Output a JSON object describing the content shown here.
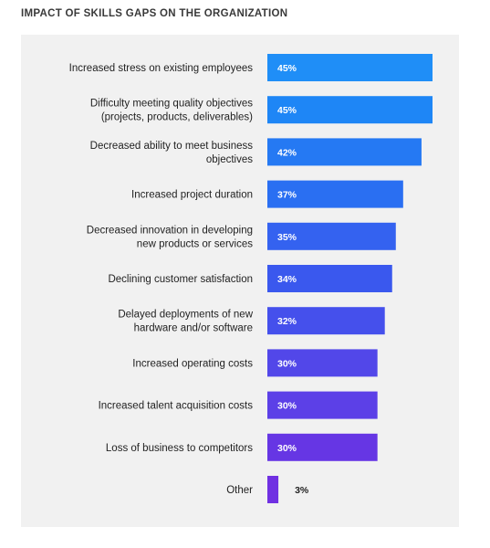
{
  "title": "IMPACT OF SKILLS GAPS ON THE ORGANIZATION",
  "chart_data": {
    "type": "bar",
    "orientation": "horizontal",
    "title": "IMPACT OF SKILLS GAPS ON THE ORGANIZATION",
    "xlabel": "",
    "ylabel": "",
    "xlim": [
      0,
      45
    ],
    "grid": false,
    "categories": [
      [
        "Increased stress on existing employees"
      ],
      [
        "Difficulty meeting quality objectives",
        "(projects, products, deliverables)"
      ],
      [
        "Decreased ability to meet business",
        "objectives"
      ],
      [
        "Increased project duration"
      ],
      [
        "Decreased innovation in developing",
        "new products or services"
      ],
      [
        "Declining customer satisfaction"
      ],
      [
        "Delayed deployments of new",
        "hardware and/or software"
      ],
      [
        "Increased operating costs"
      ],
      [
        "Increased talent acquisition costs"
      ],
      [
        "Loss of business to competitors"
      ],
      [
        "Other"
      ]
    ],
    "values": [
      45,
      45,
      42,
      37,
      35,
      34,
      32,
      30,
      30,
      30,
      3
    ],
    "value_labels": [
      "45%",
      "45%",
      "42%",
      "37%",
      "35%",
      "34%",
      "32%",
      "30%",
      "30%",
      "30%",
      "3%"
    ],
    "colors": [
      "#1f8ef7",
      "#1e86f6",
      "#2579f3",
      "#2a6ff2",
      "#3462f0",
      "#3a58ee",
      "#4550ec",
      "#5247e9",
      "#5c40e7",
      "#6636e4",
      "#7030e2"
    ],
    "label_color_inside": "#ffffff",
    "label_color_outside": "#222222"
  }
}
